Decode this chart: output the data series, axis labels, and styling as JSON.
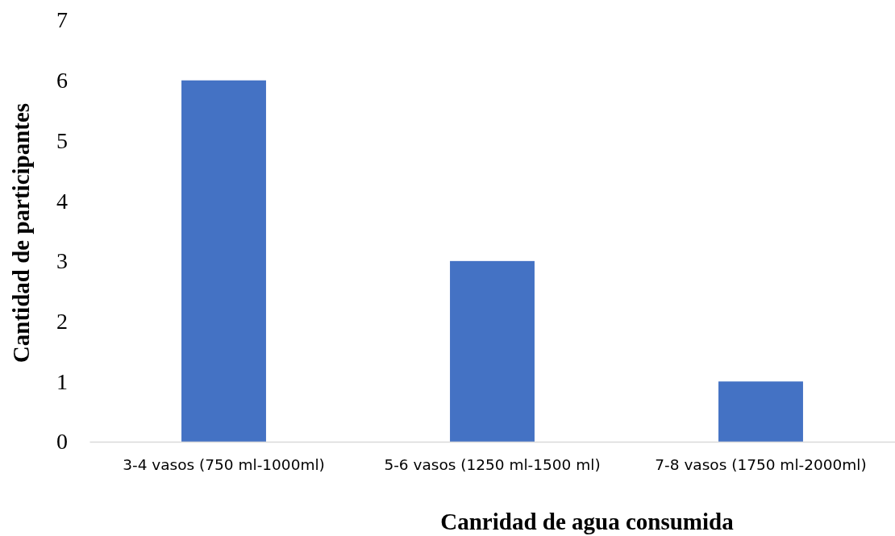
{
  "chart_data": {
    "type": "bar",
    "xlabel": "Canridad de agua consumida",
    "ylabel": "Cantidad de participantes",
    "categories": [
      "3-4 vasos (750 ml-1000ml)",
      "5-6 vasos (1250 ml-1500 ml)",
      "7-8 vasos (1750 ml-2000ml)"
    ],
    "values": [
      6,
      3,
      1
    ],
    "color": "#4472c4",
    "ylim": [
      0,
      7
    ],
    "yticks": [
      0,
      1,
      2,
      3,
      4,
      5,
      6,
      7
    ],
    "grid": false
  }
}
